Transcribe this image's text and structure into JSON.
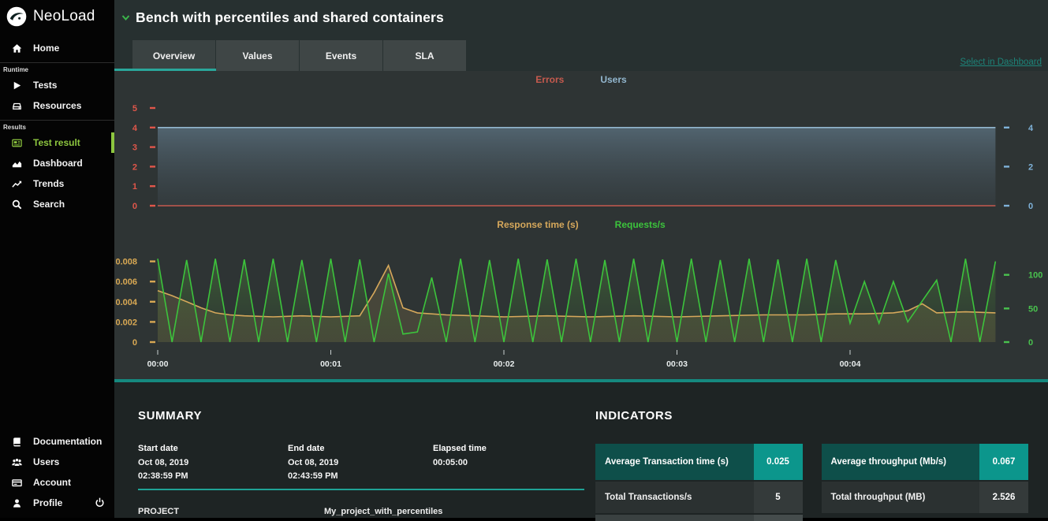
{
  "app": {
    "brand": "NeoLoad"
  },
  "sidebar": {
    "home": {
      "label": "Home"
    },
    "sections": [
      {
        "label": "Runtime",
        "items": [
          {
            "label": "Tests"
          },
          {
            "label": "Resources"
          }
        ]
      },
      {
        "label": "Results",
        "items": [
          {
            "label": "Test result",
            "active": true
          },
          {
            "label": "Dashboard"
          },
          {
            "label": "Trends"
          },
          {
            "label": "Search"
          }
        ]
      }
    ],
    "bottom": [
      {
        "label": "Documentation"
      },
      {
        "label": "Users"
      },
      {
        "label": "Account"
      },
      {
        "label": "Profile"
      }
    ]
  },
  "header": {
    "title": "Bench with percentiles and shared containers",
    "select_link": "Select in Dashboard"
  },
  "tabs": [
    {
      "label": "Overview",
      "active": true
    },
    {
      "label": "Values"
    },
    {
      "label": "Events"
    },
    {
      "label": "SLA"
    }
  ],
  "colors": {
    "accent_teal": "#2aa79b",
    "sidebar_active_green": "#8dc63f",
    "errors": "#df5347",
    "users": "#7fb0d6",
    "response_time": "#d6a85b",
    "requests": "#3cc43c"
  },
  "chart_data": [
    {
      "type": "line",
      "title": "Errors / Users",
      "left_axis": {
        "color": "#e0564a",
        "min": 0,
        "max": 5,
        "ticks": [
          5,
          4,
          3,
          2,
          1,
          0
        ]
      },
      "right_axis": {
        "color": "#7fb2d9",
        "min": 0,
        "max": 5,
        "ticks": [
          4,
          2,
          0
        ]
      },
      "x_axis": {
        "min": 0,
        "max": 4.84,
        "ticks": []
      },
      "series": [
        {
          "name": "Errors",
          "axis": "left",
          "color": "#c65a4e",
          "points": [
            [
              0,
              0
            ],
            [
              4.84,
              0
            ]
          ]
        },
        {
          "name": "Users",
          "axis": "right",
          "color": "#93b7cf",
          "fill": "url(#gradBlue)",
          "points": [
            [
              0,
              4
            ],
            [
              4.84,
              4
            ]
          ]
        }
      ]
    },
    {
      "type": "line",
      "title": "Response time / Requests per second",
      "left_axis": {
        "color": "#d8a853",
        "min": 0,
        "max": 0.0093,
        "ticks": [
          0.008,
          0.006,
          0.004,
          0.002,
          0
        ]
      },
      "right_axis": {
        "color": "#49c24e",
        "min": 0,
        "max": 139.5,
        "ticks": [
          100,
          50,
          0
        ]
      },
      "x_axis": {
        "min": 0,
        "max": 4.84,
        "ticks": [
          {
            "t": 0,
            "label": "00:00"
          },
          {
            "t": 1,
            "label": "00:01"
          },
          {
            "t": 2,
            "label": "00:02"
          },
          {
            "t": 3,
            "label": "00:03"
          },
          {
            "t": 4,
            "label": "00:04"
          }
        ]
      },
      "series": [
        {
          "name": "Response time (s)",
          "axis": "left",
          "color": "#d6a85b",
          "fill": "rgba(205,165,95,0.16)",
          "points": [
            [
              0,
              0.0051
            ],
            [
              0.083,
              0.0046
            ],
            [
              0.167,
              0.004
            ],
            [
              0.25,
              0.0034
            ],
            [
              0.333,
              0.0029
            ],
            [
              0.417,
              0.0027
            ],
            [
              0.5,
              0.0026
            ],
            [
              0.667,
              0.0025
            ],
            [
              0.833,
              0.0026
            ],
            [
              1,
              0.0025
            ],
            [
              1.167,
              0.0026
            ],
            [
              1.25,
              0.0049
            ],
            [
              1.333,
              0.0076
            ],
            [
              1.417,
              0.0034
            ],
            [
              1.5,
              0.0029
            ],
            [
              1.667,
              0.0027
            ],
            [
              1.833,
              0.0026
            ],
            [
              2,
              0.0025
            ],
            [
              2.25,
              0.0026
            ],
            [
              2.5,
              0.0025
            ],
            [
              2.75,
              0.0026
            ],
            [
              3,
              0.0025
            ],
            [
              3.25,
              0.0026
            ],
            [
              3.5,
              0.0027
            ],
            [
              3.75,
              0.0027
            ],
            [
              3.917,
              0.0028
            ],
            [
              4.083,
              0.0028
            ],
            [
              4.25,
              0.0029
            ],
            [
              4.333,
              0.0031
            ],
            [
              4.417,
              0.0038
            ],
            [
              4.5,
              0.0029
            ],
            [
              4.667,
              0.003
            ],
            [
              4.84,
              0.0029
            ]
          ]
        },
        {
          "name": "Requests/s",
          "axis": "right",
          "color": "#3cc43c",
          "fill": "url(#gradGreen)",
          "points": [
            [
              0,
              124
            ],
            [
              0.083,
              0
            ],
            [
              0.167,
              122
            ],
            [
              0.25,
              0
            ],
            [
              0.333,
              124
            ],
            [
              0.417,
              0
            ],
            [
              0.5,
              123
            ],
            [
              0.583,
              0
            ],
            [
              0.667,
              124
            ],
            [
              0.75,
              0
            ],
            [
              0.833,
              122
            ],
            [
              0.917,
              0
            ],
            [
              1,
              124
            ],
            [
              1.083,
              0
            ],
            [
              1.167,
              123
            ],
            [
              1.25,
              0
            ],
            [
              1.333,
              102
            ],
            [
              1.417,
              12
            ],
            [
              1.5,
              15
            ],
            [
              1.583,
              96
            ],
            [
              1.667,
              0
            ],
            [
              1.75,
              124
            ],
            [
              1.833,
              0
            ],
            [
              1.917,
              122
            ],
            [
              2,
              0
            ],
            [
              2.083,
              124
            ],
            [
              2.167,
              0
            ],
            [
              2.25,
              123
            ],
            [
              2.333,
              0
            ],
            [
              2.417,
              124
            ],
            [
              2.5,
              0
            ],
            [
              2.583,
              122
            ],
            [
              2.667,
              0
            ],
            [
              2.75,
              124
            ],
            [
              2.833,
              0
            ],
            [
              2.917,
              123
            ],
            [
              3,
              0
            ],
            [
              3.083,
              124
            ],
            [
              3.167,
              0
            ],
            [
              3.25,
              122
            ],
            [
              3.333,
              0
            ],
            [
              3.417,
              124
            ],
            [
              3.5,
              0
            ],
            [
              3.583,
              123
            ],
            [
              3.667,
              0
            ],
            [
              3.75,
              124
            ],
            [
              3.833,
              0
            ],
            [
              3.917,
              122
            ],
            [
              4,
              28
            ],
            [
              4.083,
              90
            ],
            [
              4.167,
              28
            ],
            [
              4.25,
              90
            ],
            [
              4.333,
              30
            ],
            [
              4.5,
              92
            ],
            [
              4.583,
              0
            ],
            [
              4.667,
              124
            ],
            [
              4.75,
              0
            ],
            [
              4.84,
              120
            ]
          ]
        }
      ]
    }
  ],
  "summary": {
    "heading": "SUMMARY",
    "fields": [
      {
        "label": "Start date",
        "lines": [
          "Oct 08, 2019",
          "02:38:59 PM"
        ]
      },
      {
        "label": "End date",
        "lines": [
          "Oct 08, 2019",
          "02:43:59 PM"
        ]
      },
      {
        "label": "Elapsed time",
        "lines": [
          "00:05:00",
          ""
        ]
      }
    ],
    "project_label": "PROJECT",
    "project_value": "My_project_with_percentiles"
  },
  "indicators": {
    "heading": "INDICATORS",
    "cards": [
      {
        "header_label": "Average Transaction time (s)",
        "header_value": "0.025",
        "rows": [
          {
            "label": "Total Transactions/s",
            "value": "5"
          }
        ]
      },
      {
        "header_label": "Average throughput (Mb/s)",
        "header_value": "0.067",
        "rows": [
          {
            "label": "Total throughput (MB)",
            "value": "2.526"
          }
        ]
      }
    ]
  }
}
